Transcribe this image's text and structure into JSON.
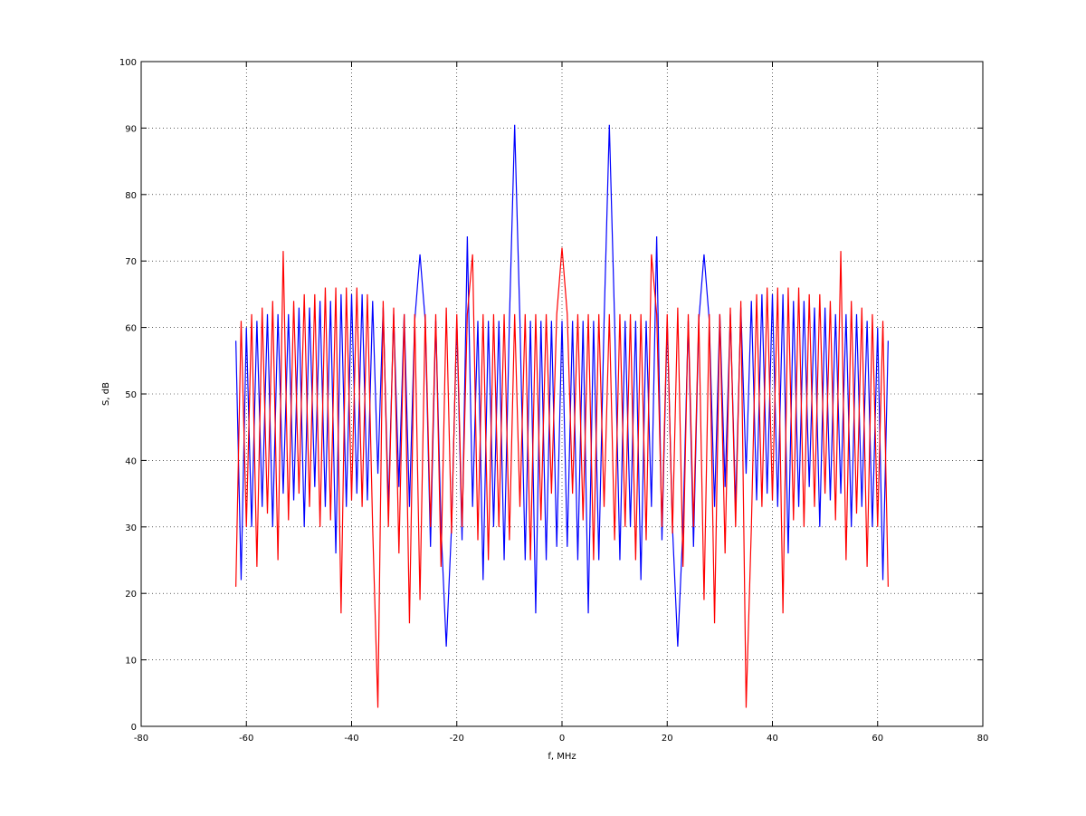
{
  "chart_data": {
    "type": "line",
    "xlabel": "f, MHz",
    "ylabel": "S, dB",
    "xlim": [
      -80,
      80
    ],
    "xticks": [
      -80,
      -60,
      -40,
      -20,
      0,
      20,
      40,
      60,
      80
    ],
    "ylim": [
      0,
      100
    ],
    "yticks": [
      0,
      10,
      20,
      30,
      40,
      50,
      60,
      70,
      80,
      90,
      100
    ],
    "grid": true,
    "x": [
      -62,
      -61,
      -60,
      -59,
      -58,
      -57,
      -56,
      -55,
      -54,
      -53,
      -52,
      -51,
      -50,
      -49,
      -48,
      -47,
      -46,
      -45,
      -44,
      -43,
      -42,
      -41,
      -40,
      -39,
      -38,
      -37,
      -36,
      -35,
      -34,
      -33,
      -32,
      -31,
      -30,
      -29,
      -28,
      -27,
      -26,
      -25,
      -24,
      -23,
      -22,
      -21,
      -20,
      -19,
      -18,
      -17,
      -16,
      -15,
      -14,
      -13,
      -12,
      -11,
      -10,
      -9,
      -8,
      -7,
      -6,
      -5,
      -4,
      -3,
      -2,
      -1,
      0,
      1,
      2,
      3,
      4,
      5,
      6,
      7,
      8,
      9,
      10,
      11,
      12,
      13,
      14,
      15,
      16,
      17,
      18,
      19,
      20,
      21,
      22,
      23,
      24,
      25,
      26,
      27,
      28,
      29,
      30,
      31,
      32,
      33,
      34,
      35,
      36,
      37,
      38,
      39,
      40,
      41,
      42,
      43,
      44,
      45,
      46,
      47,
      48,
      49,
      50,
      51,
      52,
      53,
      54,
      55,
      56,
      57,
      58,
      59,
      60,
      61,
      62
    ],
    "series": [
      {
        "color": "#0000ff",
        "values": [
          58,
          22,
          60,
          30,
          61,
          33,
          62,
          30,
          62,
          35,
          62,
          34,
          63,
          30,
          63,
          36,
          64,
          33,
          64,
          26,
          65,
          33,
          65,
          35,
          65,
          34,
          64,
          38,
          63,
          33,
          62,
          36,
          62,
          33,
          61,
          71,
          61,
          27,
          61,
          30,
          12,
          30,
          61,
          28,
          73.7,
          33,
          61,
          22,
          61,
          30,
          61,
          25,
          61,
          90.5,
          61,
          25,
          61,
          17,
          61,
          25,
          61,
          27,
          61,
          27,
          61,
          25,
          61,
          17,
          61,
          25,
          61,
          90.5,
          61,
          25,
          61,
          30,
          61,
          22,
          61,
          33,
          73.7,
          28,
          61,
          30,
          12,
          30,
          61,
          27,
          61,
          71,
          61,
          33,
          62,
          36,
          62,
          33,
          63,
          38,
          64,
          34,
          65,
          35,
          65,
          33,
          65,
          26,
          64,
          33,
          64,
          36,
          63,
          30,
          63,
          34,
          62,
          35,
          62,
          30,
          62,
          33,
          61,
          30,
          60,
          22,
          58
        ]
      },
      {
        "color": "#ff0000",
        "values": [
          21,
          61,
          30,
          62,
          24,
          63,
          32,
          64,
          25,
          71.5,
          31,
          64,
          35,
          65,
          33,
          65,
          30,
          66,
          31,
          66,
          17,
          66,
          34,
          66,
          33,
          65,
          30,
          2.8,
          64,
          30,
          63,
          26,
          62,
          15.5,
          62,
          19,
          62,
          30,
          62,
          24,
          63,
          29,
          62,
          30,
          62,
          71,
          28,
          62,
          25,
          62,
          30,
          62,
          28,
          62,
          33,
          62,
          25,
          62,
          31,
          62,
          35,
          62,
          72,
          62,
          35,
          62,
          31,
          62,
          25,
          62,
          33,
          62,
          28,
          62,
          30,
          62,
          25,
          62,
          28,
          71,
          62,
          30,
          62,
          29,
          63,
          24,
          62,
          30,
          62,
          19,
          62,
          15.5,
          62,
          26,
          63,
          30,
          64,
          2.8,
          30,
          65,
          33,
          66,
          34,
          66,
          17,
          66,
          31,
          66,
          30,
          65,
          33,
          65,
          35,
          64,
          31,
          71.5,
          25,
          64,
          32,
          63,
          24,
          62,
          30,
          61,
          21
        ]
      }
    ]
  }
}
